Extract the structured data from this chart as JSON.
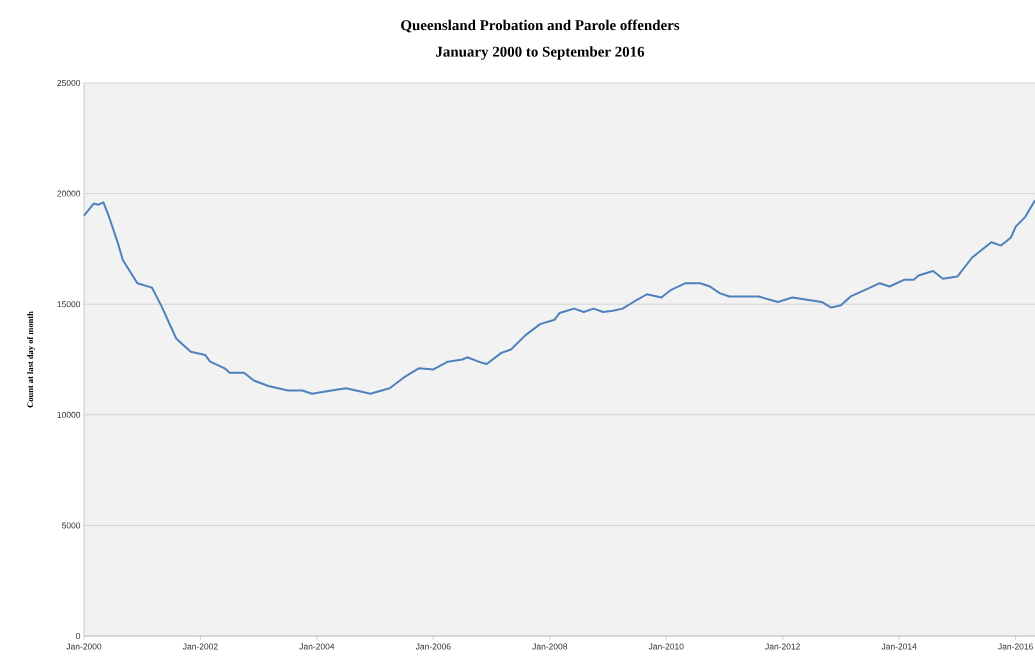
{
  "chart_data": {
    "type": "line",
    "title": "Queensland Probation and Parole offenders",
    "subtitle": "January 2000 to September 2016",
    "ylabel": "Count at last day of month",
    "x": [
      "2000-01",
      "2000-03",
      "2000-04",
      "2000-05",
      "2000-06",
      "2000-08",
      "2000-09",
      "2000-12",
      "2001-03",
      "2001-05",
      "2001-08",
      "2001-11",
      "2002-02",
      "2002-03",
      "2002-06",
      "2002-07",
      "2002-10",
      "2002-12",
      "2003-03",
      "2003-07",
      "2003-10",
      "2003-12",
      "2004-04",
      "2004-07",
      "2004-10",
      "2004-12",
      "2005-04",
      "2005-07",
      "2005-10",
      "2006-01",
      "2006-04",
      "2006-07",
      "2006-08",
      "2006-11",
      "2006-12",
      "2007-03",
      "2007-05",
      "2007-08",
      "2007-11",
      "2008-02",
      "2008-03",
      "2008-06",
      "2008-08",
      "2008-10",
      "2008-12",
      "2009-02",
      "2009-04",
      "2009-07",
      "2009-09",
      "2009-12",
      "2010-02",
      "2010-05",
      "2010-08",
      "2010-10",
      "2010-12",
      "2011-02",
      "2011-05",
      "2011-08",
      "2011-12",
      "2012-03",
      "2012-06",
      "2012-09",
      "2012-11",
      "2013-01",
      "2013-03",
      "2013-06",
      "2013-09",
      "2013-11",
      "2014-02",
      "2014-04",
      "2014-05",
      "2014-08",
      "2014-10",
      "2015-01",
      "2015-04",
      "2015-08",
      "2015-10",
      "2015-12",
      "2016-01",
      "2016-03",
      "2016-05"
    ],
    "series": [
      {
        "color": "#4f81bd",
        "values": [
          19000,
          19550,
          19500,
          19600,
          19050,
          17750,
          17000,
          15950,
          15750,
          14900,
          13450,
          12850,
          12700,
          12400,
          12100,
          11900,
          11900,
          11550,
          11300,
          11100,
          11100,
          10950,
          11100,
          11200,
          11050,
          10950,
          11200,
          11700,
          12100,
          12050,
          12400,
          12500,
          12600,
          12350,
          12300,
          12800,
          12950,
          13600,
          14100,
          14300,
          14600,
          14800,
          14650,
          14800,
          14650,
          14700,
          14800,
          15200,
          15450,
          15300,
          15650,
          15950,
          15950,
          15800,
          15500,
          15350,
          15350,
          15350,
          15100,
          15300,
          15200,
          15100,
          14850,
          14950,
          15350,
          15650,
          15950,
          15800,
          16100,
          16100,
          16300,
          16500,
          16150,
          16250,
          17100,
          17800,
          17650,
          18000,
          18500,
          18950,
          19700
        ]
      }
    ],
    "xlim": [
      "2000-01",
      "2016-05"
    ],
    "xticks": [
      {
        "value": "2000-01",
        "label": "Jan-2000"
      },
      {
        "value": "2002-01",
        "label": "Jan-2002"
      },
      {
        "value": "2004-01",
        "label": "Jan-2004"
      },
      {
        "value": "2006-01",
        "label": "Jan-2006"
      },
      {
        "value": "2008-01",
        "label": "Jan-2008"
      },
      {
        "value": "2010-01",
        "label": "Jan-2010"
      },
      {
        "value": "2012-01",
        "label": "Jan-2012"
      },
      {
        "value": "2014-01",
        "label": "Jan-2014"
      },
      {
        "value": "2016-01",
        "label": "Jan-2016"
      }
    ],
    "ylim": [
      0,
      25000
    ],
    "yticks": [
      0,
      5000,
      10000,
      15000,
      20000,
      25000
    ],
    "grid": "y",
    "marker": "none",
    "line_style": "solid"
  }
}
